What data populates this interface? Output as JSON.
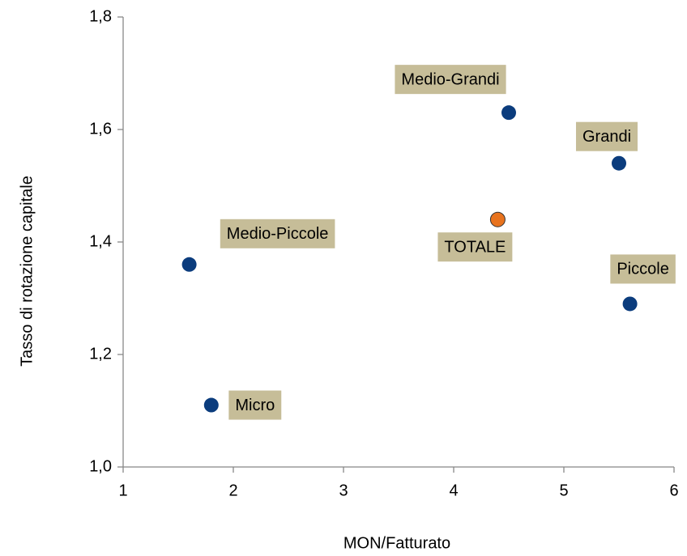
{
  "chart_data": {
    "type": "scatter",
    "xlabel": "MON/Fatturato",
    "ylabel": "Tasso di rotazione capitale",
    "labels": [
      "Medio-Grandi",
      "Grandi",
      "TOTALE",
      "Medio-Piccole",
      "Piccole",
      "Micro"
    ],
    "x": [
      4.5,
      5.5,
      4.4,
      1.6,
      5.6,
      1.8
    ],
    "y": [
      1.63,
      1.54,
      1.44,
      1.36,
      1.29,
      1.11
    ],
    "colors": [
      "#0b3c7d",
      "#0b3c7d",
      "#e8731e",
      "#0b3c7d",
      "#0b3c7d",
      "#0b3c7d"
    ],
    "label_color": "#c6bd98",
    "xlim": [
      1,
      6
    ],
    "xticks": [
      1,
      2,
      3,
      4,
      5,
      6
    ],
    "ylim": [
      1.0,
      1.8
    ],
    "yticks": [
      {
        "value": 1.0,
        "label": "1,0"
      },
      {
        "value": 1.2,
        "label": "1,2"
      },
      {
        "value": 1.4,
        "label": "1,4"
      },
      {
        "value": 1.6,
        "label": "1,6"
      },
      {
        "value": 1.8,
        "label": "1,8"
      }
    ],
    "grid": false
  }
}
